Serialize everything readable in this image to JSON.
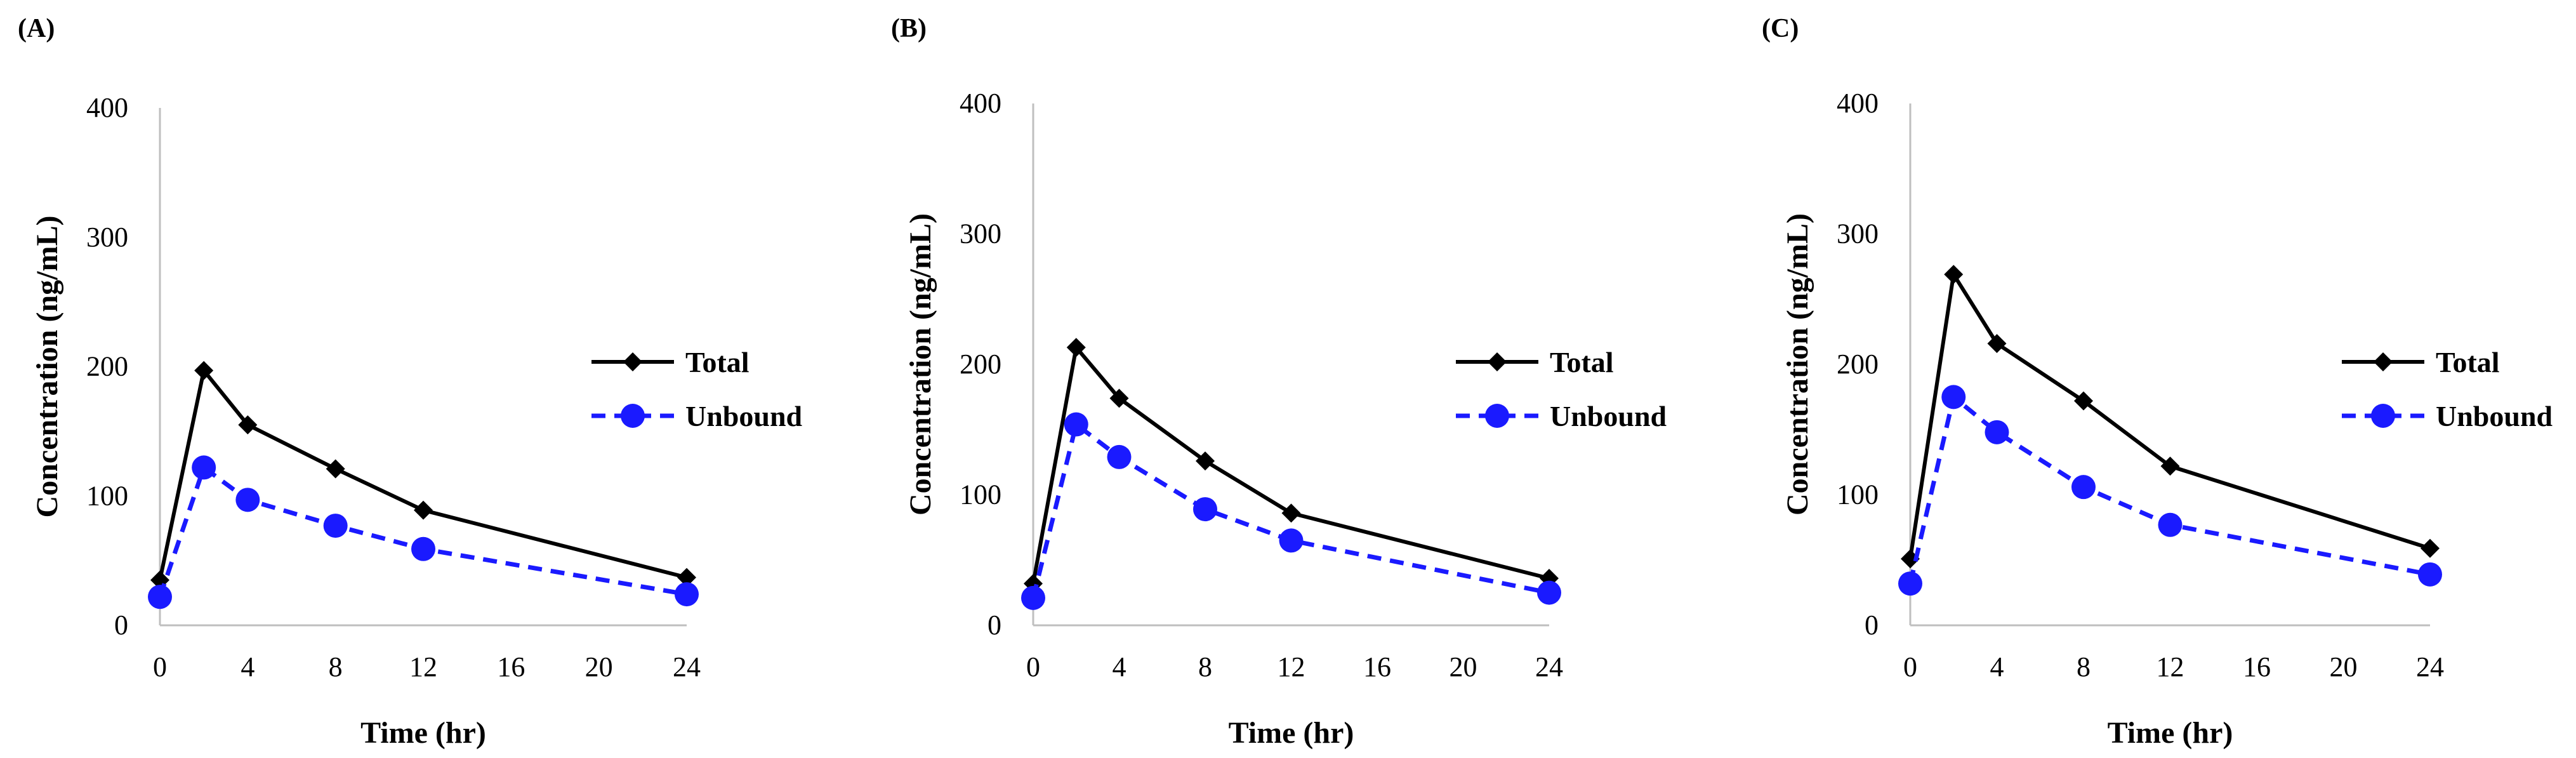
{
  "chart_data": [
    {
      "type": "line",
      "panel_label": "(A)",
      "xlabel": "Time (hr)",
      "ylabel": "Concentration (ng/mL)",
      "xlim": [
        0,
        24
      ],
      "ylim": [
        0,
        400
      ],
      "x_ticks": [
        0,
        4,
        8,
        12,
        16,
        20,
        24
      ],
      "y_ticks": [
        0,
        100,
        200,
        300,
        400
      ],
      "grid": false,
      "legend": "right",
      "series": [
        {
          "name": "Total",
          "color": "#000000",
          "marker": "diamond",
          "dashed": false,
          "x": [
            0,
            2,
            4,
            8,
            12,
            24
          ],
          "y": [
            35,
            197,
            155,
            121,
            89,
            37
          ]
        },
        {
          "name": "Unbound",
          "color": "#1a1aff",
          "marker": "circle",
          "dashed": true,
          "x": [
            0,
            2,
            4,
            8,
            12,
            24
          ],
          "y": [
            22,
            122,
            97,
            77,
            59,
            24
          ]
        }
      ]
    },
    {
      "type": "line",
      "panel_label": "(B)",
      "xlabel": "Time (hr)",
      "ylabel": "Concentration (ng/mL)",
      "xlim": [
        0,
        24
      ],
      "ylim": [
        0,
        400
      ],
      "x_ticks": [
        0,
        4,
        8,
        12,
        16,
        20,
        24
      ],
      "y_ticks": [
        0,
        100,
        200,
        300,
        400
      ],
      "grid": false,
      "legend": "right",
      "series": [
        {
          "name": "Total",
          "color": "#000000",
          "marker": "diamond",
          "dashed": false,
          "x": [
            0,
            2,
            4,
            8,
            12,
            24
          ],
          "y": [
            32,
            213,
            174,
            126,
            86,
            36
          ]
        },
        {
          "name": "Unbound",
          "color": "#1a1aff",
          "marker": "circle",
          "dashed": true,
          "x": [
            0,
            2,
            4,
            8,
            12,
            24
          ],
          "y": [
            21,
            154,
            129,
            89,
            65,
            25
          ]
        }
      ]
    },
    {
      "type": "line",
      "panel_label": "(C)",
      "xlabel": "Time (hr)",
      "ylabel": "Concentration (ng/mL)",
      "xlim": [
        0,
        24
      ],
      "ylim": [
        0,
        400
      ],
      "x_ticks": [
        0,
        4,
        8,
        12,
        16,
        20,
        24
      ],
      "y_ticks": [
        0,
        100,
        200,
        300,
        400
      ],
      "grid": false,
      "legend": "right",
      "series": [
        {
          "name": "Total",
          "color": "#000000",
          "marker": "diamond",
          "dashed": false,
          "x": [
            0,
            2,
            4,
            8,
            12,
            24
          ],
          "y": [
            51,
            269,
            216,
            172,
            122,
            59
          ]
        },
        {
          "name": "Unbound",
          "color": "#1a1aff",
          "marker": "circle",
          "dashed": true,
          "x": [
            0,
            2,
            4,
            8,
            12,
            24
          ],
          "y": [
            32,
            175,
            148,
            106,
            77,
            39
          ]
        }
      ]
    }
  ]
}
